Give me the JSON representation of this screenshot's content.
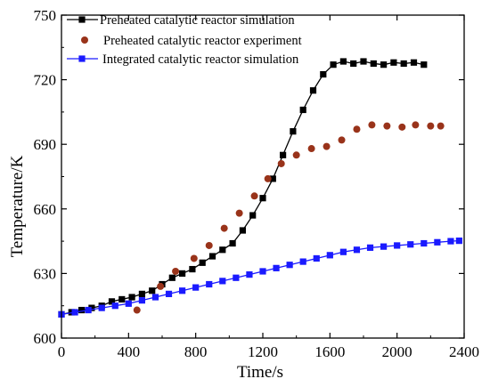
{
  "chart_data": {
    "type": "line",
    "title": "",
    "xlabel": "Time/s",
    "ylabel": "Temperature/K",
    "xlim": [
      0,
      2400
    ],
    "ylim": [
      600,
      750
    ],
    "xticks": [
      0,
      400,
      800,
      1200,
      1600,
      2000,
      2400
    ],
    "yticks": [
      600,
      630,
      660,
      690,
      720,
      750
    ],
    "xtick_labels": [
      "0",
      "400",
      "800",
      "1200",
      "1600",
      "2000",
      "2400"
    ],
    "ytick_labels": [
      "600",
      "630",
      "660",
      "690",
      "720",
      "750"
    ],
    "grid": false,
    "legend_position": "top-left",
    "series": [
      {
        "name": "Preheated catalytic  reactor simulation",
        "color": "#000000",
        "marker": "square",
        "line": true,
        "x": [
          0,
          60,
          120,
          180,
          240,
          300,
          360,
          420,
          480,
          540,
          600,
          660,
          720,
          780,
          840,
          900,
          960,
          1020,
          1080,
          1140,
          1200,
          1260,
          1320,
          1380,
          1440,
          1500,
          1560,
          1620,
          1680,
          1740,
          1800,
          1860,
          1920,
          1980,
          2040,
          2100,
          2160
        ],
        "y": [
          611,
          612,
          613,
          614,
          615,
          617,
          618,
          619,
          620.5,
          622,
          625,
          628,
          630,
          632,
          635,
          638,
          641,
          644,
          650,
          657,
          665,
          674,
          685,
          696,
          706,
          715,
          722.5,
          727,
          728.5,
          727.5,
          728.5,
          727.5,
          727,
          728,
          727.5,
          728,
          727
        ]
      },
      {
        "name": "Preheated catalytic  reactor experiment",
        "color": "#99331a",
        "marker": "circle",
        "line": false,
        "x": [
          450,
          590,
          680,
          790,
          880,
          970,
          1060,
          1150,
          1230,
          1310,
          1400,
          1490,
          1580,
          1670,
          1760,
          1850,
          1940,
          2030,
          2110,
          2200,
          2260
        ],
        "y": [
          613,
          624,
          631,
          637,
          643,
          651,
          658,
          666,
          674,
          681,
          685,
          688,
          689,
          692,
          697,
          699,
          698.5,
          698,
          699,
          698.5,
          698.5
        ]
      },
      {
        "name": "Integrated catalytic reactor simulation",
        "color": "#1a1aff",
        "marker": "square",
        "line": true,
        "x": [
          0,
          80,
          160,
          240,
          320,
          400,
          480,
          560,
          640,
          720,
          800,
          880,
          960,
          1040,
          1120,
          1200,
          1280,
          1360,
          1440,
          1520,
          1600,
          1680,
          1760,
          1840,
          1920,
          2000,
          2080,
          2160,
          2240,
          2320,
          2370
        ],
        "y": [
          611,
          612,
          613,
          614,
          615,
          616,
          617.5,
          619,
          620.5,
          622,
          623.5,
          625,
          626.5,
          628,
          629.5,
          631,
          632.5,
          634,
          635.5,
          637,
          638.5,
          640,
          641,
          642,
          642.5,
          643,
          643.5,
          644,
          644.5,
          645,
          645.2
        ]
      }
    ]
  }
}
